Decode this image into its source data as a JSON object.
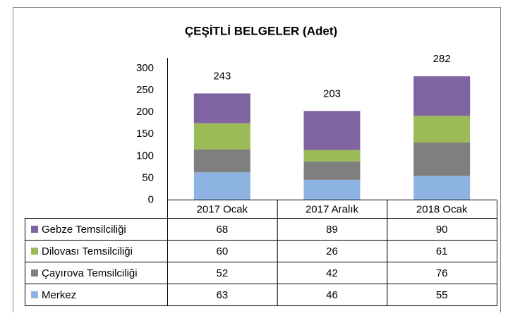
{
  "chart_data": {
    "type": "stacked_bar",
    "title": "ÇEŞİTLİ BELGELER (Adet)",
    "categories": [
      "2017 Ocak",
      "2017 Aralık",
      "2018 Ocak"
    ],
    "series": [
      {
        "name": "Merkez",
        "color": "#8eb4e3",
        "values": [
          63,
          46,
          55
        ]
      },
      {
        "name": "Çayırova Temsilciliği",
        "color": "#7f7f7f",
        "values": [
          52,
          42,
          76
        ]
      },
      {
        "name": "Dilovası Temsilciliği",
        "color": "#9bbb59",
        "values": [
          60,
          26,
          61
        ]
      },
      {
        "name": "Gebze Temsilciliği",
        "color": "#8064a2",
        "values": [
          68,
          89,
          90
        ]
      }
    ],
    "totals": [
      243,
      203,
      282
    ],
    "ylim": [
      0,
      300
    ],
    "yticks": [
      0,
      50,
      100,
      150,
      200,
      250,
      300
    ],
    "grid": false,
    "data_table": true
  }
}
